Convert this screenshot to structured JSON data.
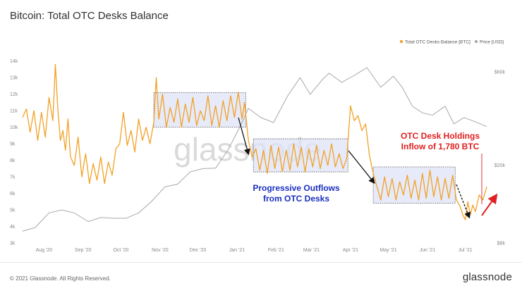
{
  "title": "Bitcoin: Total OTC Desks Balance",
  "footer": "© 2021 Glassnode. All Rights Reserved.",
  "logo": "glassnode",
  "watermark": "glassnode",
  "colors": {
    "balance": "#f2a127",
    "price": "#a8a8a8",
    "box_fill": "#dfe3f6",
    "annotation_red": "#e02020",
    "annotation_blue": "#1a2fbf"
  },
  "annotations": {
    "outflows_line1": "Progressive Outflows",
    "outflows_line2": "from OTC Desks",
    "inflow_line1": "OTC Desk Holdings",
    "inflow_line2": "Inflow of 1,780 BTC"
  },
  "chart_data": {
    "type": "line",
    "legend_position": "top-right",
    "grid": false,
    "x_ticks": [
      "Aug '20",
      "Sep '20",
      "Oct '20",
      "Nov '20",
      "Dec '20",
      "Jan '21",
      "Feb '21",
      "Mar '21",
      "Apr '21",
      "May '21",
      "Jun '21",
      "Jul '21"
    ],
    "x_range": [
      "2020-07-15",
      "2021-07-18"
    ],
    "y_left": {
      "ticks": [
        "3k",
        "4k",
        "5k",
        "6k",
        "7k",
        "8k",
        "9k",
        "10k",
        "11k",
        "12k",
        "13k",
        "14k"
      ],
      "range": [
        3000,
        14500
      ]
    },
    "y_right": {
      "ticks": [
        "$8k",
        "$20k",
        "$60k"
      ],
      "scale": "log",
      "range": [
        8000,
        75000
      ]
    },
    "series": [
      {
        "name": "Total OTC Desks Balance [BTC]",
        "axis": "left",
        "points": [
          [
            "2020-07-15",
            10600
          ],
          [
            "2020-07-18",
            11100
          ],
          [
            "2020-07-21",
            9700
          ],
          [
            "2020-07-24",
            11000
          ],
          [
            "2020-07-27",
            9200
          ],
          [
            "2020-07-30",
            10900
          ],
          [
            "2020-08-02",
            9400
          ],
          [
            "2020-08-05",
            11800
          ],
          [
            "2020-08-08",
            10400
          ],
          [
            "2020-08-10",
            13800
          ],
          [
            "2020-08-12",
            11000
          ],
          [
            "2020-08-14",
            9200
          ],
          [
            "2020-08-16",
            9800
          ],
          [
            "2020-08-18",
            8600
          ],
          [
            "2020-08-20",
            10500
          ],
          [
            "2020-08-22",
            8200
          ],
          [
            "2020-08-25",
            7700
          ],
          [
            "2020-08-28",
            9400
          ],
          [
            "2020-08-31",
            7000
          ],
          [
            "2020-09-03",
            8400
          ],
          [
            "2020-09-06",
            6600
          ],
          [
            "2020-09-09",
            7800
          ],
          [
            "2020-09-12",
            6800
          ],
          [
            "2020-09-15",
            8200
          ],
          [
            "2020-09-18",
            6600
          ],
          [
            "2020-09-21",
            7900
          ],
          [
            "2020-09-24",
            7100
          ],
          [
            "2020-09-27",
            8700
          ],
          [
            "2020-09-30",
            9000
          ],
          [
            "2020-10-03",
            10900
          ],
          [
            "2020-10-06",
            8900
          ],
          [
            "2020-10-09",
            9800
          ],
          [
            "2020-10-12",
            8500
          ],
          [
            "2020-10-15",
            10500
          ],
          [
            "2020-10-18",
            9200
          ],
          [
            "2020-10-21",
            10000
          ],
          [
            "2020-10-24",
            9000
          ],
          [
            "2020-10-27",
            10300
          ],
          [
            "2020-10-29",
            13000
          ],
          [
            "2020-10-31",
            10500
          ],
          [
            "2020-11-03",
            12000
          ],
          [
            "2020-11-06",
            10000
          ],
          [
            "2020-11-09",
            11200
          ],
          [
            "2020-11-12",
            10300
          ],
          [
            "2020-11-15",
            11700
          ],
          [
            "2020-11-18",
            10000
          ],
          [
            "2020-11-21",
            11400
          ],
          [
            "2020-11-24",
            10300
          ],
          [
            "2020-11-27",
            11800
          ],
          [
            "2020-11-30",
            10100
          ],
          [
            "2020-12-03",
            11000
          ],
          [
            "2020-12-06",
            10400
          ],
          [
            "2020-12-09",
            11900
          ],
          [
            "2020-12-12",
            10100
          ],
          [
            "2020-12-15",
            11300
          ],
          [
            "2020-12-18",
            10000
          ],
          [
            "2020-12-21",
            11600
          ],
          [
            "2020-12-24",
            10400
          ],
          [
            "2020-12-27",
            11900
          ],
          [
            "2020-12-30",
            10600
          ],
          [
            "2021-01-02",
            12100
          ],
          [
            "2021-01-05",
            10500
          ],
          [
            "2021-01-07",
            11500
          ],
          [
            "2021-01-10",
            9200
          ],
          [
            "2021-01-13",
            8200
          ],
          [
            "2021-01-16",
            8700
          ],
          [
            "2021-01-19",
            7400
          ],
          [
            "2021-01-22",
            8600
          ],
          [
            "2021-01-25",
            7200
          ],
          [
            "2021-01-28",
            8900
          ],
          [
            "2021-01-31",
            7500
          ],
          [
            "2021-02-03",
            8800
          ],
          [
            "2021-02-06",
            7300
          ],
          [
            "2021-02-09",
            8600
          ],
          [
            "2021-02-12",
            7400
          ],
          [
            "2021-02-15",
            9000
          ],
          [
            "2021-02-18",
            7600
          ],
          [
            "2021-02-21",
            8800
          ],
          [
            "2021-02-24",
            7300
          ],
          [
            "2021-02-27",
            8700
          ],
          [
            "2021-03-02",
            7600
          ],
          [
            "2021-03-05",
            8900
          ],
          [
            "2021-03-08",
            7500
          ],
          [
            "2021-03-11",
            8600
          ],
          [
            "2021-03-14",
            7700
          ],
          [
            "2021-03-17",
            9000
          ],
          [
            "2021-03-20",
            7600
          ],
          [
            "2021-03-23",
            8400
          ],
          [
            "2021-03-26",
            7500
          ],
          [
            "2021-03-29",
            8100
          ],
          [
            "2021-04-01",
            11300
          ],
          [
            "2021-04-04",
            10400
          ],
          [
            "2021-04-07",
            10700
          ],
          [
            "2021-04-10",
            9800
          ],
          [
            "2021-04-13",
            10200
          ],
          [
            "2021-04-16",
            8300
          ],
          [
            "2021-04-19",
            7200
          ],
          [
            "2021-04-22",
            6400
          ],
          [
            "2021-04-25",
            5600
          ],
          [
            "2021-04-28",
            7000
          ],
          [
            "2021-05-01",
            5800
          ],
          [
            "2021-05-04",
            6900
          ],
          [
            "2021-05-07",
            5600
          ],
          [
            "2021-05-10",
            6700
          ],
          [
            "2021-05-13",
            5900
          ],
          [
            "2021-05-16",
            7100
          ],
          [
            "2021-05-19",
            5700
          ],
          [
            "2021-05-22",
            6800
          ],
          [
            "2021-05-25",
            5600
          ],
          [
            "2021-05-28",
            7200
          ],
          [
            "2021-05-31",
            5700
          ],
          [
            "2021-06-03",
            7400
          ],
          [
            "2021-06-06",
            5800
          ],
          [
            "2021-06-09",
            7000
          ],
          [
            "2021-06-12",
            5600
          ],
          [
            "2021-06-15",
            6900
          ],
          [
            "2021-06-18",
            5700
          ],
          [
            "2021-06-21",
            7100
          ],
          [
            "2021-06-24",
            5600
          ],
          [
            "2021-06-27",
            5200
          ],
          [
            "2021-06-29",
            4700
          ],
          [
            "2021-07-01",
            4400
          ],
          [
            "2021-07-03",
            5500
          ],
          [
            "2021-07-05",
            4700
          ],
          [
            "2021-07-07",
            5300
          ],
          [
            "2021-07-09",
            4900
          ],
          [
            "2021-07-12",
            5900
          ],
          [
            "2021-07-15",
            5600
          ],
          [
            "2021-07-18",
            6400
          ]
        ]
      },
      {
        "name": "Price [USD]",
        "axis": "right",
        "points": [
          [
            "2020-07-15",
            9200
          ],
          [
            "2020-07-25",
            9600
          ],
          [
            "2020-08-05",
            11400
          ],
          [
            "2020-08-15",
            11800
          ],
          [
            "2020-08-25",
            11400
          ],
          [
            "2020-09-05",
            10300
          ],
          [
            "2020-09-15",
            10800
          ],
          [
            "2020-09-25",
            10700
          ],
          [
            "2020-10-05",
            10700
          ],
          [
            "2020-10-15",
            11400
          ],
          [
            "2020-10-25",
            13000
          ],
          [
            "2020-11-05",
            15500
          ],
          [
            "2020-11-15",
            16000
          ],
          [
            "2020-11-25",
            18500
          ],
          [
            "2020-12-05",
            19200
          ],
          [
            "2020-12-15",
            19300
          ],
          [
            "2020-12-25",
            24000
          ],
          [
            "2021-01-05",
            33000
          ],
          [
            "2021-01-10",
            39000
          ],
          [
            "2021-01-20",
            35000
          ],
          [
            "2021-01-30",
            33000
          ],
          [
            "2021-02-10",
            45000
          ],
          [
            "2021-02-20",
            56000
          ],
          [
            "2021-02-28",
            46000
          ],
          [
            "2021-03-10",
            55000
          ],
          [
            "2021-03-15",
            59000
          ],
          [
            "2021-03-25",
            53000
          ],
          [
            "2021-04-05",
            58000
          ],
          [
            "2021-04-14",
            63000
          ],
          [
            "2021-04-25",
            50000
          ],
          [
            "2021-05-05",
            57000
          ],
          [
            "2021-05-12",
            50000
          ],
          [
            "2021-05-20",
            40000
          ],
          [
            "2021-05-28",
            37000
          ],
          [
            "2021-06-05",
            36000
          ],
          [
            "2021-06-15",
            40000
          ],
          [
            "2021-06-22",
            32500
          ],
          [
            "2021-06-30",
            35000
          ],
          [
            "2021-07-08",
            33500
          ],
          [
            "2021-07-18",
            31500
          ]
        ]
      }
    ]
  }
}
